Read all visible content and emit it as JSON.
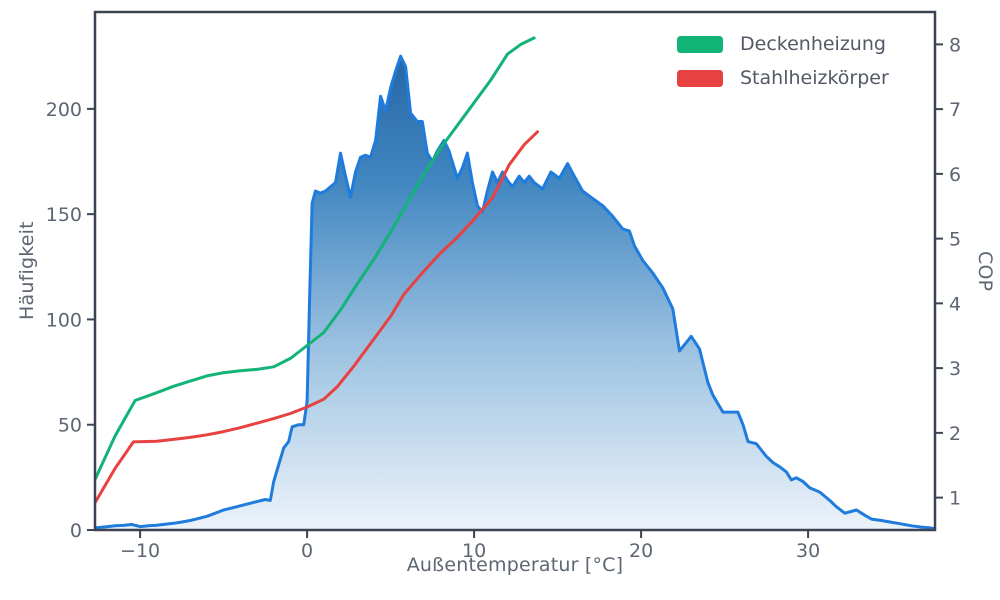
{
  "chart_data": {
    "type": "composite",
    "description": "Histogram of outdoor temperature frequency (left axis) overlaid with two heat-pump COP curves (right axis)",
    "xlabel": "Außentemperatur [°C]",
    "ylabel_left": "Häufigkeit",
    "ylabel_right": "COP",
    "xlim": [
      -12.7,
      37.6
    ],
    "ylim_left": [
      0,
      246
    ],
    "ylim_right": [
      0.5,
      8.5
    ],
    "x_ticks": [
      -10,
      0,
      10,
      20,
      30
    ],
    "x_tick_labels": [
      "−10",
      "0",
      "10",
      "20",
      "30"
    ],
    "y_ticks_left": [
      0,
      50,
      100,
      150,
      200
    ],
    "y_tick_labels_left": [
      "0",
      "50",
      "100",
      "150",
      "200"
    ],
    "y_ticks_right": [
      1,
      2,
      3,
      4,
      5,
      6,
      7,
      8
    ],
    "y_tick_labels_right": [
      "1",
      "2",
      "3",
      "4",
      "5",
      "6",
      "7",
      "8"
    ],
    "grid": false,
    "legend_position": "upper right",
    "histogram": {
      "type": "area",
      "axis": "left",
      "line_color": "#1f7cdc",
      "fill_gradient": [
        "#1b5b9c",
        "#4287c1",
        "#9fc4e2",
        "#edf3fa"
      ],
      "x": [
        -12.7,
        -12,
        -11.5,
        -11,
        -10.5,
        -10,
        -9.5,
        -9,
        -8.5,
        -8,
        -7.5,
        -7,
        -6.5,
        -6,
        -5.5,
        -5,
        -4.5,
        -4,
        -3.5,
        -3,
        -2.5,
        -2.2,
        -2,
        -1.7,
        -1.4,
        -1.1,
        -0.9,
        -0.5,
        -0.2,
        0,
        0.15,
        0.3,
        0.5,
        0.8,
        1.1,
        1.4,
        1.7,
        2,
        2.3,
        2.6,
        2.9,
        3.2,
        3.5,
        3.8,
        4.1,
        4.4,
        4.7,
        5,
        5.3,
        5.6,
        5.9,
        6.2,
        6.6,
        6.9,
        7.2,
        7.5,
        7.8,
        8.2,
        8.5,
        9,
        9.3,
        9.6,
        9.9,
        10.2,
        10.5,
        10.8,
        11.1,
        11.4,
        11.7,
        12,
        12.3,
        12.7,
        13,
        13.3,
        13.6,
        14.1,
        14.6,
        15.1,
        15.6,
        16,
        16.5,
        17,
        17.7,
        18.3,
        18.9,
        19.3,
        19.6,
        20.1,
        20.7,
        21.3,
        21.9,
        22.3,
        23,
        23.5,
        24,
        24.3,
        24.9,
        25.8,
        26.1,
        26.4,
        26.9,
        27.5,
        27.9,
        28.3,
        28.7,
        29,
        29.3,
        29.7,
        30.1,
        30.7,
        31.3,
        31.7,
        32.2,
        32.9,
        33.4,
        33.8,
        34.4,
        34.9,
        35.5,
        36.2,
        36.8,
        37.3,
        37.6
      ],
      "y": [
        1,
        1.5,
        2,
        2.2,
        2.6,
        1.6,
        2,
        2.3,
        2.7,
        3.2,
        3.8,
        4.5,
        5.5,
        6.5,
        8,
        9.5,
        10.5,
        11.5,
        12.5,
        13.5,
        14.5,
        14,
        23,
        31,
        39,
        42,
        49,
        50,
        50,
        61,
        110,
        155,
        161,
        160,
        161,
        163,
        165,
        179,
        168,
        158,
        170,
        177,
        178,
        177,
        185,
        206,
        199,
        210,
        218,
        225,
        220,
        198,
        194,
        194,
        179,
        175,
        180,
        185,
        180,
        167,
        172,
        179,
        165,
        154,
        151,
        161,
        170,
        165,
        170,
        166,
        163,
        168,
        165,
        168,
        165,
        162,
        170,
        167,
        174,
        168,
        161,
        158,
        154,
        149,
        143,
        142,
        135,
        128,
        122,
        115,
        105,
        85,
        92,
        86,
        70,
        64,
        56,
        56,
        50,
        42,
        41,
        35,
        32,
        30,
        27.6,
        23.8,
        24.8,
        23,
        20,
        18,
        14,
        11,
        8,
        9.5,
        7,
        5.2,
        4.5,
        3.8,
        3,
        2,
        1.4,
        1,
        0.5
      ]
    },
    "cop_series": [
      {
        "name": "Deckenheizung",
        "color": "#12b377",
        "axis": "right",
        "points": [
          [
            -12.7,
            1.28
          ],
          [
            -11.5,
            1.95
          ],
          [
            -10.3,
            2.5
          ],
          [
            -9,
            2.62
          ],
          [
            -8,
            2.72
          ],
          [
            -7,
            2.8
          ],
          [
            -6,
            2.88
          ],
          [
            -5,
            2.93
          ],
          [
            -4,
            2.96
          ],
          [
            -3,
            2.98
          ],
          [
            -2,
            3.02
          ],
          [
            -1,
            3.15
          ],
          [
            0,
            3.35
          ],
          [
            1,
            3.55
          ],
          [
            2,
            3.9
          ],
          [
            3,
            4.3
          ],
          [
            4,
            4.68
          ],
          [
            5,
            5.1
          ],
          [
            6,
            5.55
          ],
          [
            7,
            6.0
          ],
          [
            8,
            6.4
          ],
          [
            9,
            6.75
          ],
          [
            10,
            7.1
          ],
          [
            11,
            7.45
          ],
          [
            12,
            7.85
          ],
          [
            12.8,
            8.0
          ],
          [
            13.6,
            8.1
          ]
        ]
      },
      {
        "name": "Stahlheizkörper",
        "color": "#e84141",
        "axis": "right",
        "points": [
          [
            -12.7,
            0.92
          ],
          [
            -11.5,
            1.45
          ],
          [
            -10.4,
            1.86
          ],
          [
            -9,
            1.87
          ],
          [
            -8,
            1.9
          ],
          [
            -7,
            1.93
          ],
          [
            -6,
            1.97
          ],
          [
            -5,
            2.02
          ],
          [
            -4,
            2.08
          ],
          [
            -3,
            2.15
          ],
          [
            -2,
            2.22
          ],
          [
            -1,
            2.3
          ],
          [
            0,
            2.4
          ],
          [
            1,
            2.52
          ],
          [
            1.8,
            2.71
          ],
          [
            2.8,
            3.03
          ],
          [
            4,
            3.45
          ],
          [
            5,
            3.8
          ],
          [
            5.8,
            4.14
          ],
          [
            7,
            4.5
          ],
          [
            8,
            4.78
          ],
          [
            9,
            5.02
          ],
          [
            10,
            5.3
          ],
          [
            11.1,
            5.63
          ],
          [
            12.1,
            6.14
          ],
          [
            13,
            6.45
          ],
          [
            13.8,
            6.65
          ]
        ]
      }
    ],
    "style": {
      "spine_color": "#3c4454",
      "spine_width": 2.5,
      "tick_color": "#3c4454",
      "tick_length": 7,
      "tick_label_color": "#5d6672",
      "tick_label_size": 19,
      "background": "#ffffff",
      "line_width": 3
    }
  }
}
